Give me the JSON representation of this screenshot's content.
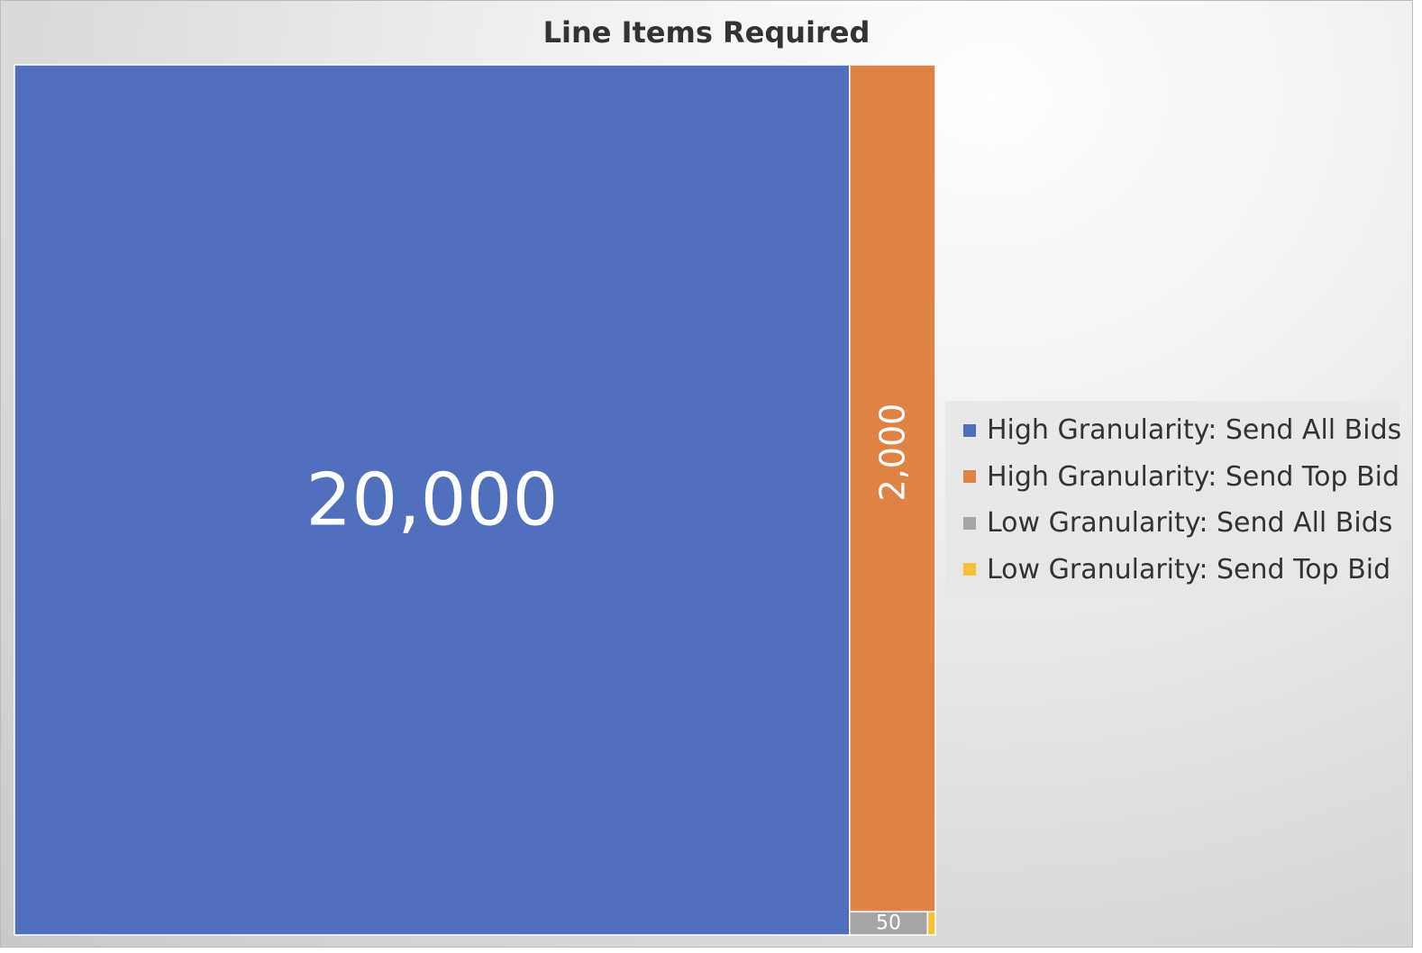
{
  "chart_data": {
    "type": "treemap",
    "title": "Line Items Required",
    "legend_position": "right",
    "series": [
      {
        "name": "High Granularity: Send All Bids",
        "value": 20000,
        "label": "20,000",
        "color": "#5070BE"
      },
      {
        "name": "High Granularity: Send Top Bid",
        "value": 2000,
        "label": "2,000",
        "color": "#DF8344"
      },
      {
        "name": "Low Granularity: Send All Bids",
        "value": 50,
        "label": "50",
        "color": "#A5A5A5"
      },
      {
        "name": "Low Granularity: Send Top Bid",
        "value": 5,
        "label": "",
        "color": "#F5C03A"
      }
    ]
  }
}
